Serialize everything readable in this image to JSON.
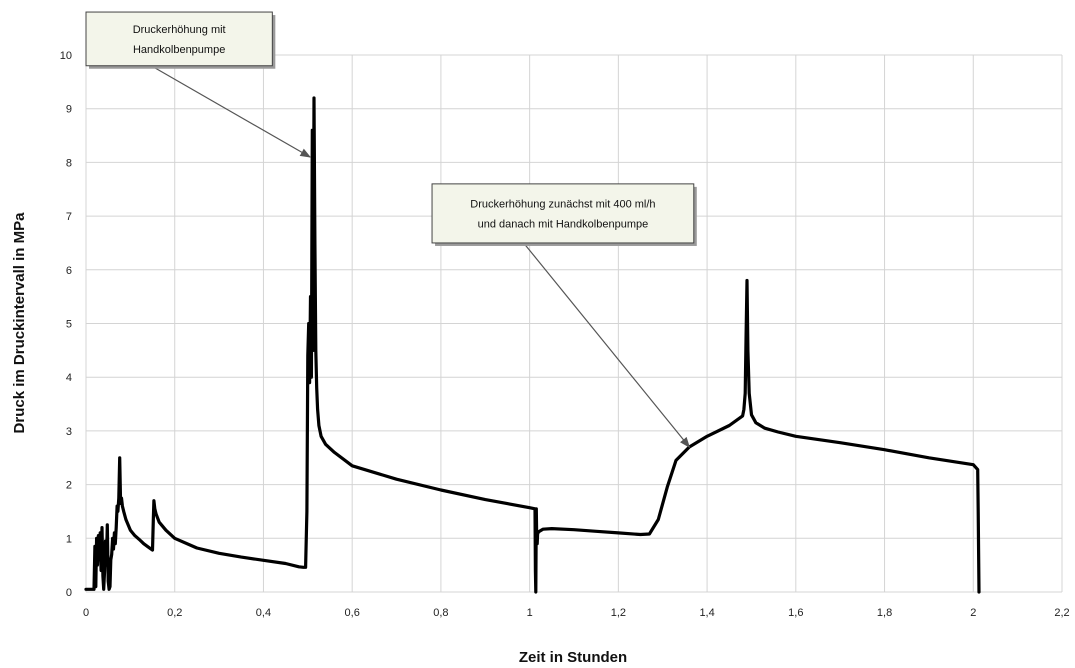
{
  "chart_data": {
    "type": "line",
    "title": "",
    "xlabel": "Zeit in Stunden",
    "ylabel": "Druck im Druckintervall in MPa",
    "xlim": [
      0,
      2.2
    ],
    "ylim": [
      0,
      10
    ],
    "x_ticks": [
      0,
      0.2,
      0.4,
      0.6,
      0.8,
      1,
      1.2,
      1.4,
      1.6,
      1.8,
      2,
      2.2
    ],
    "x_tick_labels": [
      "0",
      "0,2",
      "0,4",
      "0,6",
      "0,8",
      "1",
      "1,2",
      "1,4",
      "1,6",
      "1,8",
      "2",
      "2,2"
    ],
    "y_ticks": [
      0,
      1,
      2,
      3,
      4,
      5,
      6,
      7,
      8,
      9,
      10
    ],
    "y_tick_labels": [
      "0",
      "1",
      "2",
      "3",
      "4",
      "5",
      "6",
      "7",
      "8",
      "9",
      "10"
    ],
    "grid": true,
    "line_color": "#000000",
    "series": [
      {
        "x": [
          0,
          0.018,
          0.02,
          0.022,
          0.024,
          0.026,
          0.028,
          0.03,
          0.032,
          0.034,
          0.036,
          0.038,
          0.04,
          0.042,
          0.044,
          0.046,
          0.048,
          0.05,
          0.052,
          0.054,
          0.056,
          0.058,
          0.06,
          0.062,
          0.064,
          0.066,
          0.068,
          0.07,
          0.072,
          0.074,
          0.076,
          0.078,
          0.08,
          0.082,
          0.085,
          0.09,
          0.1,
          0.11,
          0.12,
          0.13,
          0.14,
          0.15,
          0.152,
          0.153,
          0.155,
          0.158,
          0.165,
          0.18,
          0.2,
          0.25,
          0.3,
          0.35,
          0.4,
          0.45,
          0.48,
          0.49,
          0.495,
          0.498,
          0.5,
          0.502,
          0.504,
          0.506,
          0.508,
          0.51,
          0.512,
          0.514,
          0.516,
          0.518,
          0.52,
          0.522,
          0.525,
          0.53,
          0.54,
          0.56,
          0.6,
          0.7,
          0.8,
          0.9,
          1.0,
          1.012,
          1.013,
          1.014,
          1.015,
          1.016,
          1.017,
          1.018,
          1.02,
          1.03,
          1.05,
          1.1,
          1.15,
          1.2,
          1.25,
          1.27,
          1.29,
          1.31,
          1.33,
          1.36,
          1.4,
          1.45,
          1.48,
          1.483,
          1.486,
          1.488,
          1.49,
          1.492,
          1.495,
          1.5,
          1.51,
          1.53,
          1.56,
          1.6,
          1.7,
          1.8,
          1.9,
          2.0,
          2.01,
          2.011,
          2.013
        ],
        "y": [
          0.05,
          0.05,
          0.85,
          0.1,
          1.0,
          0.5,
          1.05,
          0.6,
          1.1,
          0.4,
          1.2,
          0.3,
          0.05,
          0.4,
          0.95,
          0.5,
          1.25,
          0.2,
          0.05,
          0.1,
          0.6,
          0.7,
          1.0,
          0.8,
          1.1,
          0.9,
          1.2,
          1.6,
          1.5,
          1.75,
          2.5,
          1.65,
          1.75,
          1.6,
          1.5,
          1.35,
          1.15,
          1.05,
          0.98,
          0.9,
          0.84,
          0.78,
          1.4,
          1.7,
          1.55,
          1.45,
          1.3,
          1.15,
          1.0,
          0.82,
          0.72,
          0.65,
          0.59,
          0.53,
          0.47,
          0.46,
          0.46,
          1.5,
          4.4,
          5.0,
          3.9,
          5.5,
          4.0,
          8.6,
          4.5,
          9.2,
          6.5,
          4.5,
          3.8,
          3.4,
          3.1,
          2.9,
          2.75,
          2.6,
          2.35,
          2.1,
          1.9,
          1.72,
          1.57,
          1.55,
          0.4,
          0.0,
          1.55,
          1.0,
          0.9,
          1.08,
          1.12,
          1.17,
          1.18,
          1.16,
          1.13,
          1.1,
          1.07,
          1.08,
          1.35,
          1.95,
          2.45,
          2.7,
          2.9,
          3.1,
          3.28,
          3.4,
          3.7,
          4.8,
          5.8,
          4.5,
          3.7,
          3.3,
          3.15,
          3.05,
          2.98,
          2.9,
          2.78,
          2.65,
          2.5,
          2.37,
          2.28,
          1.5,
          0.0
        ]
      }
    ],
    "annotations": [
      {
        "lines": [
          "Druckerhöhung mit",
          "Handkolbenpumpe"
        ],
        "target": [
          0.505,
          8.1
        ],
        "box_x": [
          0.0,
          0.42
        ],
        "box_y": [
          10.8,
          9.8
        ]
      },
      {
        "lines": [
          "Druckerhöhung zunächst mit 400 ml/h",
          "und danach mit Handkolbenpumpe"
        ],
        "target": [
          1.36,
          2.7
        ],
        "box_x": [
          0.78,
          1.37
        ],
        "box_y": [
          7.6,
          6.5
        ]
      }
    ]
  }
}
